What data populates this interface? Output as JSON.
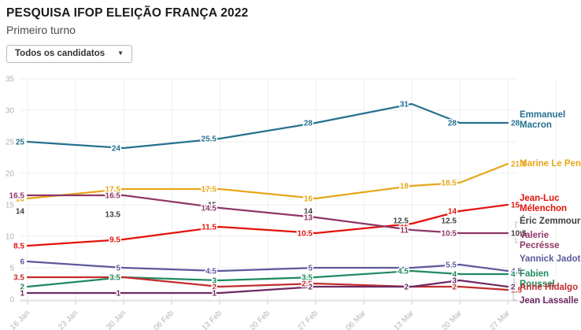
{
  "header": {
    "title": "PESQUISA IFOP ELEIÇÃO FRANÇA 2022",
    "subtitle": "Primeiro turno"
  },
  "filter": {
    "label": "Todos os candidatos",
    "caret_icon": "chevron-down"
  },
  "chart_data": {
    "type": "line",
    "title": "PESQUISA IFOP ELEIÇÃO FRANÇA 2022 — Primeiro turno",
    "xlabel": "",
    "ylabel": "",
    "ylim": [
      0,
      35
    ],
    "y_ticks": [
      0,
      5,
      10,
      15,
      20,
      25,
      30,
      35
    ],
    "grid": true,
    "legend_position": "right",
    "x_tick_labels": [
      "16 Jan",
      "23 Jan",
      "30 Jan",
      "06 Feb",
      "13 Feb",
      "20 Feb",
      "27 Feb",
      "06 Mar",
      "13 Mar",
      "20 Mar",
      "27 Mar"
    ],
    "point_dates": [
      "16 Jan",
      "30 Jan",
      "13 Feb",
      "27 Feb",
      "13 Mar",
      "20 Mar",
      "27 Mar"
    ],
    "series": [
      {
        "name": "Emmanuel Macron",
        "color": "#26708f",
        "line": true,
        "values": [
          25,
          24,
          25.5,
          28,
          31,
          28,
          28
        ],
        "point_labels": [
          "25",
          "24",
          "25.5",
          "28",
          "31",
          "28",
          null
        ],
        "end_label": "28"
      },
      {
        "name": "Marine Le Pen",
        "color": "#e7a61a",
        "line": true,
        "values": [
          16,
          17.5,
          17.5,
          16,
          18,
          18.5,
          21.5
        ],
        "point_labels": [
          "16",
          "17.5",
          "17.5",
          "16",
          "18",
          "18.5",
          null
        ],
        "end_label": "21.5"
      },
      {
        "name": "Jean-Luc Mélenchon",
        "color": "#e3120b",
        "line": true,
        "values": [
          8.5,
          9.5,
          11.5,
          10.5,
          12,
          14,
          15
        ],
        "point_labels": [
          "8.5",
          "9.5",
          "11.5",
          "10.5",
          "12",
          "14",
          null
        ],
        "end_label": "15"
      },
      {
        "name": "Éric Zemmour",
        "color": "#3f3f3f",
        "line": false,
        "values": [
          14,
          13.5,
          15,
          14,
          12.5,
          12.5,
          10.5
        ],
        "point_labels": [
          "14",
          "13.5",
          "15",
          "14",
          "12.5",
          "12.5",
          null
        ],
        "end_label": "10.5"
      },
      {
        "name": "Valerie Pecrésse",
        "color": "#8f3666",
        "line": true,
        "values": [
          16.5,
          16.5,
          14.5,
          13,
          11,
          10.5,
          10.5
        ],
        "point_labels": [
          "16.5",
          "16.5",
          "14.5",
          "13",
          "11",
          "10.5",
          null
        ],
        "end_label": null
      },
      {
        "name": "Yannick Jadot",
        "color": "#5c599c",
        "line": true,
        "values": [
          6,
          5,
          4.5,
          5,
          5,
          5.5,
          4.5
        ],
        "point_labels": [
          "6",
          "5",
          "4.5",
          "5",
          null,
          "5.5",
          null
        ],
        "end_label": "4.5"
      },
      {
        "name": "Fabien Roussel",
        "color": "#1e8a5e",
        "line": true,
        "values": [
          2,
          3.5,
          3,
          3.5,
          4.5,
          4,
          4
        ],
        "point_labels": [
          "2",
          "3.5",
          "3",
          "3.5",
          "4.5",
          "4",
          null
        ],
        "end_label": "4"
      },
      {
        "name": "Anne Hidalgo",
        "color": "#c22d2d",
        "line": true,
        "values": [
          3.5,
          3.5,
          2,
          2.5,
          2,
          2,
          1.5
        ],
        "point_labels": [
          "3.5",
          null,
          "2",
          "2.5",
          null,
          "2",
          null
        ],
        "end_label": "1.5"
      },
      {
        "name": "Jean Lassalle",
        "color": "#6d2a62",
        "line": true,
        "values": [
          1,
          1,
          1,
          2,
          2,
          3,
          2
        ],
        "point_labels": [
          "1",
          "1",
          "1",
          "2",
          "2",
          "3",
          null
        ],
        "end_label": "2"
      }
    ]
  }
}
